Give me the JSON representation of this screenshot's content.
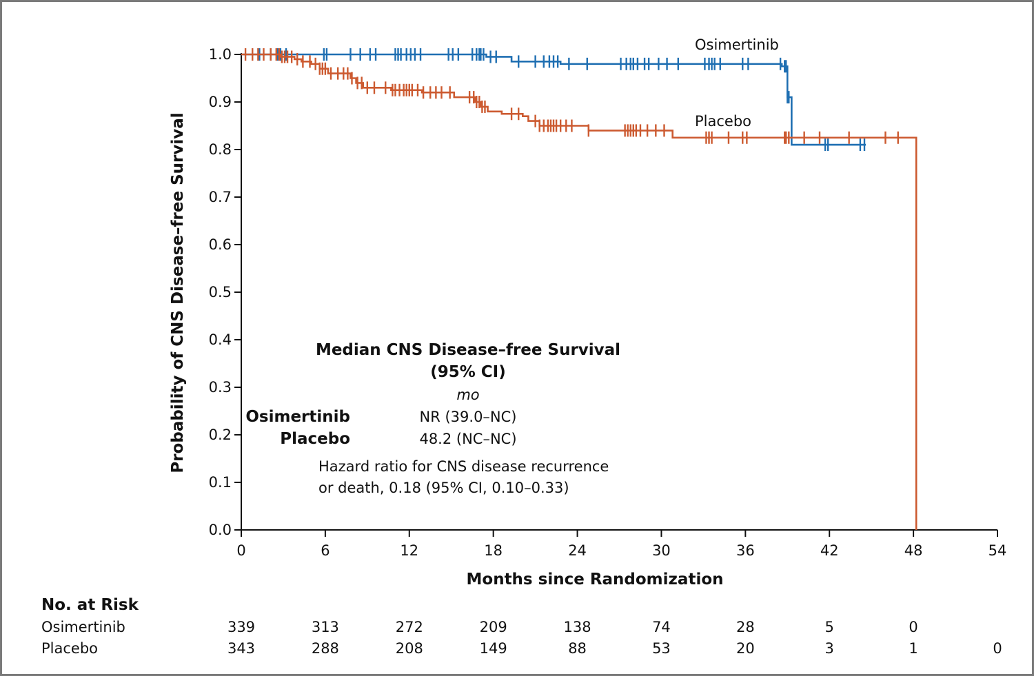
{
  "chart_data": {
    "type": "line",
    "subtype": "kaplan-meier",
    "xlabel": "Months since Randomization",
    "ylabel": "Probability of CNS Disease–free Survival",
    "xlim": [
      0,
      54
    ],
    "ylim": [
      0,
      1.0
    ],
    "xticks": [
      "0",
      "6",
      "12",
      "18",
      "24",
      "30",
      "36",
      "42",
      "48",
      "54"
    ],
    "yticks": [
      "0.0",
      "0.1",
      "0.2",
      "0.3",
      "0.4",
      "0.5",
      "0.6",
      "0.7",
      "0.8",
      "0.9",
      "1.0"
    ],
    "grid": false,
    "series": [
      {
        "name": "Osimertinib",
        "color": "#1f6fb2",
        "steps": [
          [
            0,
            1.0
          ],
          [
            17.5,
            0.995
          ],
          [
            19.3,
            0.985
          ],
          [
            22.8,
            0.98
          ],
          [
            38.6,
            0.975
          ],
          [
            39.0,
            0.91
          ],
          [
            39.3,
            0.81
          ],
          [
            44.6,
            0.81
          ]
        ],
        "censors": [
          1.3,
          2.1,
          2.6,
          2.8,
          3.2,
          5.9,
          6.1,
          7.8,
          8.5,
          9.2,
          9.6,
          11.0,
          11.2,
          11.4,
          11.8,
          12.1,
          12.4,
          12.8,
          14.8,
          15.1,
          15.5,
          16.5,
          16.8,
          17.0,
          17.1,
          17.3,
          17.8,
          18.2,
          19.8,
          21.0,
          21.6,
          22.0,
          22.3,
          22.6,
          23.4,
          24.7,
          27.1,
          27.5,
          27.8,
          28.0,
          28.3,
          28.8,
          29.1,
          29.8,
          30.4,
          31.2,
          33.1,
          33.4,
          33.6,
          33.8,
          34.2,
          35.8,
          36.2,
          38.5,
          38.8,
          38.9,
          39.0,
          39.1,
          41.7,
          41.9,
          44.2,
          44.5
        ],
        "label": "Osimertinib"
      },
      {
        "name": "Placebo",
        "color": "#cc5a30",
        "steps": [
          [
            0,
            1.0
          ],
          [
            2.8,
            0.995
          ],
          [
            3.8,
            0.99
          ],
          [
            4.3,
            0.985
          ],
          [
            5.0,
            0.98
          ],
          [
            5.6,
            0.97
          ],
          [
            6.2,
            0.96
          ],
          [
            7.8,
            0.95
          ],
          [
            8.2,
            0.94
          ],
          [
            8.7,
            0.93
          ],
          [
            10.7,
            0.925
          ],
          [
            12.9,
            0.92
          ],
          [
            15.2,
            0.91
          ],
          [
            16.7,
            0.9
          ],
          [
            17.1,
            0.89
          ],
          [
            17.6,
            0.88
          ],
          [
            18.6,
            0.875
          ],
          [
            20.1,
            0.87
          ],
          [
            20.5,
            0.86
          ],
          [
            21.3,
            0.85
          ],
          [
            24.8,
            0.84
          ],
          [
            29.0,
            0.84
          ],
          [
            30.8,
            0.825
          ],
          [
            39.4,
            0.825
          ],
          [
            48.2,
            0.825
          ],
          [
            48.2,
            0.0
          ]
        ],
        "censors": [
          0.3,
          0.8,
          1.2,
          1.6,
          2.1,
          2.5,
          2.7,
          2.9,
          3.1,
          3.3,
          3.6,
          4.0,
          4.4,
          4.9,
          5.3,
          5.6,
          5.8,
          6.0,
          6.4,
          6.9,
          7.3,
          7.6,
          7.9,
          8.3,
          8.6,
          9.0,
          9.5,
          10.3,
          10.8,
          11.0,
          11.3,
          11.6,
          11.8,
          12.0,
          12.2,
          12.6,
          13.0,
          13.5,
          13.9,
          14.3,
          14.9,
          16.3,
          16.6,
          16.8,
          17.0,
          17.2,
          17.4,
          19.3,
          19.8,
          21.0,
          21.3,
          21.6,
          21.9,
          22.1,
          22.3,
          22.5,
          22.8,
          23.2,
          23.6,
          24.8,
          27.4,
          27.6,
          27.8,
          28.0,
          28.2,
          28.5,
          29.0,
          29.6,
          30.2,
          33.2,
          33.4,
          33.6,
          34.8,
          35.8,
          36.1,
          38.8,
          38.9,
          39.1,
          40.2,
          41.3,
          43.4,
          46.0,
          46.9
        ],
        "label": "Placebo"
      }
    ],
    "annotation": {
      "title_line1": "Median CNS Disease–free Survival",
      "title_line2": "(95% CI)",
      "unit": "mo",
      "rows": [
        {
          "name": "Osimertinib",
          "value": "NR (39.0–NC)"
        },
        {
          "name": "Placebo",
          "value": "48.2 (NC–NC)"
        }
      ],
      "hr_line1": "Hazard ratio for CNS disease recurrence",
      "hr_line2": "or death, 0.18 (95% CI, 0.10–0.33)"
    },
    "at_risk": {
      "title": "No. at Risk",
      "rows": [
        {
          "name": "Osimertinib",
          "values": [
            "339",
            "313",
            "272",
            "209",
            "138",
            "74",
            "28",
            "5",
            "0"
          ]
        },
        {
          "name": "Placebo",
          "values": [
            "343",
            "288",
            "208",
            "149",
            "88",
            "53",
            "20",
            "3",
            "1",
            "0"
          ]
        }
      ]
    }
  }
}
